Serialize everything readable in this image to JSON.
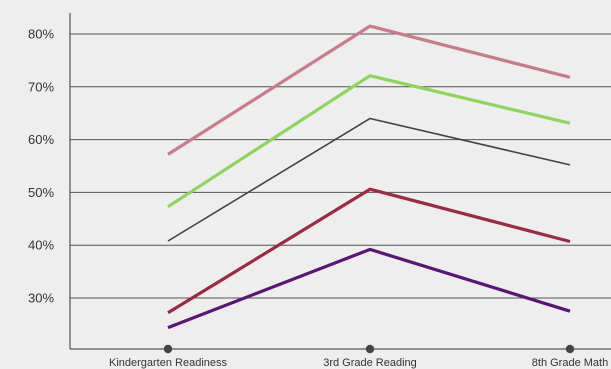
{
  "chart_data": {
    "type": "line",
    "title": "",
    "xlabel": "",
    "ylabel": "",
    "categories": [
      "Kindergarten Readiness",
      "3rd Grade Reading",
      "8th Grade Math"
    ],
    "yticks": [
      "30%",
      "40%",
      "50%",
      "60%",
      "70%",
      "80%"
    ],
    "ylim": [
      20,
      83
    ],
    "grid": true,
    "legend": "none",
    "series": [
      {
        "color": "#c97b8a",
        "values": [
          57.2,
          81.5,
          71.8
        ]
      },
      {
        "color": "#8cd65a",
        "values": [
          47.3,
          72.1,
          63.1
        ]
      },
      {
        "color": "#444444",
        "values": [
          40.8,
          64.0,
          55.2
        ]
      },
      {
        "color": "#9b2a42",
        "values": [
          27.2,
          50.6,
          40.7
        ]
      },
      {
        "color": "#5a1577",
        "values": [
          24.4,
          39.2,
          27.5
        ]
      }
    ]
  }
}
